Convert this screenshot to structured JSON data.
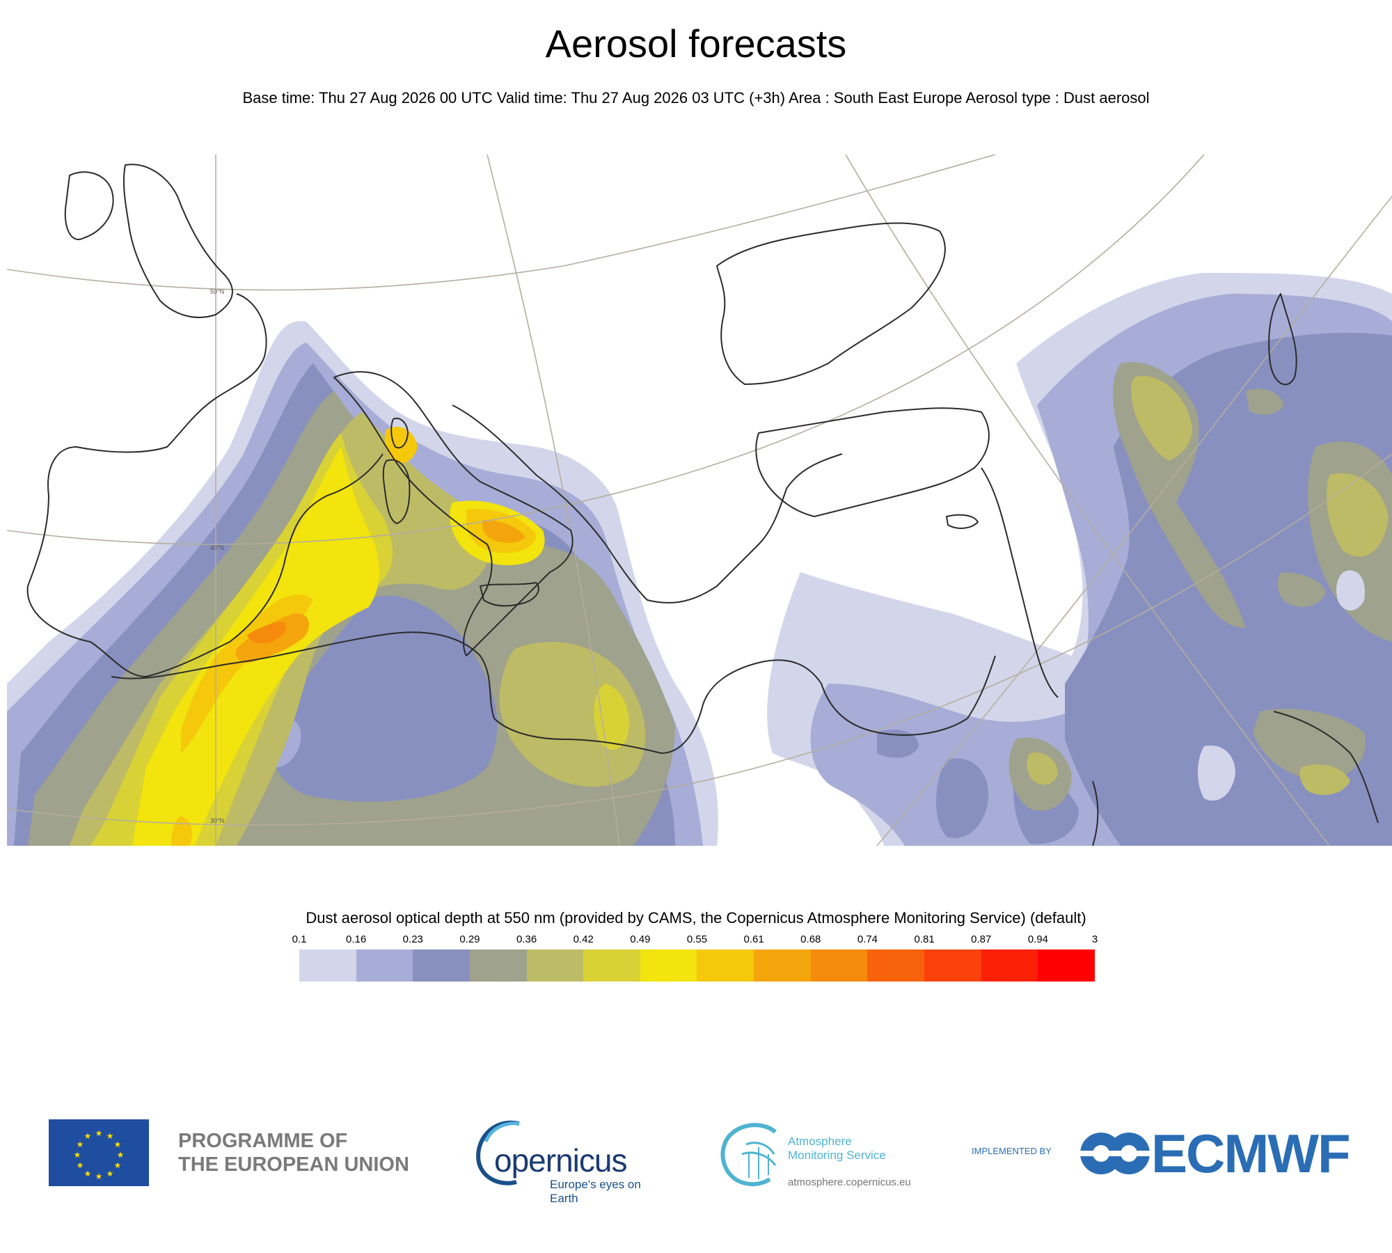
{
  "header": {
    "title": "Aerosol forecasts",
    "subtitle": "Base time: Thu 27 Aug 2026 00 UTC Valid time: Thu 27 Aug 2026 03 UTC (+3h) Area : South East Europe Aerosol type : Dust aerosol"
  },
  "map": {
    "lat_labels": [
      "50°N",
      "40°N",
      "30°N"
    ],
    "coastline_color": "#2b2b2b",
    "graticule_color": "#b5ad9f"
  },
  "legend": {
    "title": "Dust aerosol optical depth at 550 nm (provided by CAMS, the Copernicus Atmosphere Monitoring Service) (default)",
    "ticks": [
      "0.1",
      "0.16",
      "0.23",
      "0.29",
      "0.36",
      "0.42",
      "0.49",
      "0.55",
      "0.61",
      "0.68",
      "0.74",
      "0.81",
      "0.87",
      "0.94",
      "3"
    ],
    "colors": [
      "#d3d6ea",
      "#a7add6",
      "#8890c0",
      "#9fa28c",
      "#bebb66",
      "#d8d236",
      "#f2e40c",
      "#f5c80c",
      "#f5a50c",
      "#f58a0c",
      "#f8620a",
      "#fa420a",
      "#fc2006",
      "#ff0000"
    ]
  },
  "logos": {
    "eu_text_line1": "PROGRAMME OF",
    "eu_text_line2": "THE EUROPEAN UNION",
    "copernicus_word": "opernicus",
    "copernicus_tagline": "Europe's eyes on Earth",
    "cams_line1": "Atmosphere",
    "cams_line2": "Monitoring Service",
    "cams_url": "atmosphere.copernicus.eu",
    "implemented_by": "IMPLEMENTED BY",
    "ecmwf": "ECMWF"
  }
}
